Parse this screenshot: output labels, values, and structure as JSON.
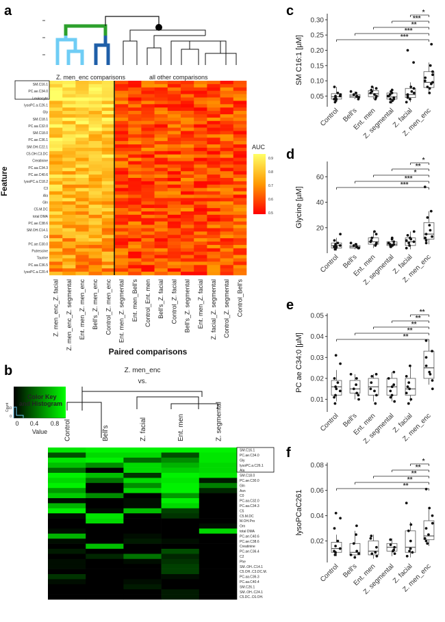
{
  "panel_letters": {
    "a": "a",
    "b": "b",
    "c": "c",
    "d": "d",
    "e": "e",
    "f": "f"
  },
  "colors": {
    "heat_low": "#ff0000",
    "heat_mid": "#ff9900",
    "heat_high": "#ffff66",
    "green": "#00ff00",
    "black": "#000000",
    "dendro_green": "#2ca02c",
    "dendro_light_blue": "#6fcdf5",
    "dendro_dark_blue": "#1f5fa8"
  },
  "chart_data": [
    {
      "id": "a",
      "type": "heatmap",
      "ylabel": "Feature",
      "xlabel": "Paired comparisons",
      "cluster_labels": [
        "Z. men_enc comparisons",
        "all other comparisons"
      ],
      "legend": {
        "title": "AUC",
        "ticks": [
          "0.9",
          "0.8",
          "0.7",
          "0.6",
          "0.5"
        ],
        "range": [
          0.5,
          0.95
        ]
      },
      "columns": [
        "Z. men_enc_Z. facial",
        "Z. men_enc_Z. segmental",
        "Ent. men_Z. men_enc",
        "Bell's_Z. men_enc",
        "Control_Z. men_enc",
        "Ent. men_Z. segmental",
        "Ent. men_Bell's",
        "Control_Ent. men",
        "Bell's_Z. facial",
        "Control_Z. facial",
        "Bell's_Z. segmental",
        "Ent. men_Z. facial",
        "Z. facial_Z. segmental",
        "Control_Z. segmental",
        "Control_Bell's"
      ],
      "boxed_rows": [
        "SM.C16.1",
        "PC.ae.C34.0",
        "Leukocyte",
        "lysoPC.a.C26.1"
      ],
      "row_labels": [
        "SM.C16.1",
        "PC.ae.C34.0",
        "Leukocyte",
        "lysoPC.a.C26.1",
        "Gly",
        "SM.C18.1",
        "PC.aa.C32.0",
        "SM.C18.0",
        "PC.ae.C36.1",
        "SM.OH.C22.1",
        "C5.OH.C3.DC",
        "Creatinine",
        "PC.aa.C34.3",
        "PC.ae.C40.6",
        "lysoPC.a.C18.2",
        "C3",
        "Ala",
        "Gln",
        "C5.M.DC",
        "total DMA",
        "PC.ae.C38.6",
        "SM.OH.C14.1",
        "C4",
        "PC.ae.C30.0",
        "Putrescine",
        "Taurine",
        "PC.aa.C36.5",
        "lysoPC.a.C20.4"
      ],
      "row_count": 58,
      "col_count": 15
    },
    {
      "id": "b",
      "type": "heatmap",
      "group_label": "Z. men_enc",
      "vs_label": "vs.",
      "columns": [
        "Control",
        "Bell's",
        "Z. facial",
        "Ent. men",
        "Z. segmental"
      ],
      "color_key": {
        "title": "Color Key",
        "subtitle": "and Histogram",
        "xlabel": "Value",
        "ylabel": "Count",
        "ticks": [
          "0",
          "0.4",
          "0.8"
        ],
        "yticks": [
          "0",
          "10"
        ]
      },
      "boxed_rows": [
        "SM.C16.1",
        "PC.ae.C34.0",
        "Gly",
        "lysoPC.a.C26.1"
      ],
      "rows": [
        {
          "name": "SM.C16.1",
          "values": [
            0.9,
            0.95,
            0.95,
            0.95,
            0.95
          ]
        },
        {
          "name": "PC.ae.C34.0",
          "values": [
            0.3,
            0.85,
            0.85,
            0.3,
            0.9
          ]
        },
        {
          "name": "Gly",
          "values": [
            0.9,
            0.95,
            0.4,
            0.55,
            0.9
          ]
        },
        {
          "name": "lysoPC.a.C26.1",
          "values": [
            0.75,
            0.55,
            0.85,
            0.7,
            0.85
          ]
        },
        {
          "name": "Ala",
          "values": [
            0.4,
            0.0,
            0.85,
            0.8,
            0.85
          ]
        },
        {
          "name": "SM.C18.0",
          "values": [
            0.95,
            0.75,
            0.2,
            0.95,
            0.9
          ]
        },
        {
          "name": "PC.ae.C30.0",
          "values": [
            0.85,
            0.45,
            0.85,
            0.9,
            0.1
          ]
        },
        {
          "name": "Gln",
          "values": [
            0.95,
            0.0,
            0.55,
            0.95,
            0.5
          ]
        },
        {
          "name": "Asn",
          "values": [
            0.6,
            0.0,
            0.85,
            0.95,
            0.15
          ]
        },
        {
          "name": "C0",
          "values": [
            0.8,
            0.55,
            0.0,
            0.6,
            0.0
          ]
        },
        {
          "name": "PC.aa.C32.0",
          "values": [
            0.05,
            0.0,
            0.05,
            0.95,
            0.0
          ]
        },
        {
          "name": "PC.aa.C34.3",
          "values": [
            0.7,
            0.0,
            0.05,
            0.85,
            0.0
          ]
        },
        {
          "name": "C5",
          "values": [
            0.95,
            0.05,
            0.75,
            0.25,
            0.0
          ]
        },
        {
          "name": "C5.M.DC",
          "values": [
            0.05,
            0.9,
            0.0,
            0.2,
            0.0
          ]
        },
        {
          "name": "M.OH.Pro",
          "values": [
            0.0,
            0.85,
            0.0,
            0.0,
            0.0
          ]
        },
        {
          "name": "Orn",
          "values": [
            0.0,
            0.0,
            0.0,
            0.0,
            0.05
          ]
        },
        {
          "name": "total DMA",
          "values": [
            0.05,
            0.0,
            0.0,
            0.0,
            0.85
          ]
        },
        {
          "name": "PC.ae.C40.6",
          "values": [
            0.7,
            0.0,
            0.05,
            0.0,
            0.0
          ]
        },
        {
          "name": "PC.ae.C38.6",
          "values": [
            0.05,
            0.0,
            0.1,
            0.05,
            0.0
          ]
        },
        {
          "name": "Creatinine",
          "values": [
            0.0,
            0.75,
            0.0,
            0.0,
            0.0
          ]
        },
        {
          "name": "PC.ae.C36.4",
          "values": [
            0.1,
            0.0,
            0.0,
            0.3,
            0.0
          ]
        },
        {
          "name": "C2",
          "values": [
            0.0,
            0.15,
            0.45,
            0.15,
            0.0
          ]
        },
        {
          "name": "Phe",
          "values": [
            0.05,
            0.0,
            0.05,
            0.2,
            0.0
          ]
        },
        {
          "name": "SM..OH..C14.1",
          "values": [
            0.05,
            0.0,
            0.0,
            0.25,
            0.0
          ]
        },
        {
          "name": "C5.OH..C3.DC.M.",
          "values": [
            0.0,
            0.0,
            0.0,
            0.25,
            0.0
          ]
        },
        {
          "name": "PC.aa.C36.3",
          "values": [
            0.2,
            0.0,
            0.0,
            0.05,
            0.0
          ]
        },
        {
          "name": "PC.aa.C40.4",
          "values": [
            0.05,
            0.0,
            0.05,
            0.0,
            0.0
          ]
        },
        {
          "name": "SM.C26.1",
          "values": [
            0.0,
            0.0,
            0.1,
            0.0,
            0.0
          ]
        },
        {
          "name": "SM..OH..C24.1",
          "values": [
            0.0,
            0.0,
            0.0,
            0.1,
            0.0
          ]
        },
        {
          "name": "C5.DC..C6.OH.",
          "values": [
            0.0,
            0.0,
            0.0,
            0.1,
            0.0
          ]
        }
      ]
    },
    {
      "id": "c",
      "type": "scatter",
      "ylabel": "SM C16:1 [µM]",
      "ylim": [
        0.015,
        0.32
      ],
      "yticks": [
        "0.05",
        "0.10",
        "0.15",
        "0.20",
        "0.25",
        "0.30"
      ],
      "ytick_values": [
        0.05,
        0.1,
        0.15,
        0.2,
        0.25,
        0.3
      ],
      "categories": [
        "Control",
        "Bell's",
        "Ent. men",
        "Z. segmental",
        "Z. facial",
        "Z. men_enc"
      ],
      "boxes": [
        [
          0.035,
          0.04,
          0.048,
          0.058,
          0.08
        ],
        [
          0.04,
          0.045,
          0.05,
          0.055,
          0.065
        ],
        [
          0.04,
          0.048,
          0.058,
          0.068,
          0.08
        ],
        [
          0.025,
          0.04,
          0.047,
          0.06,
          0.075
        ],
        [
          0.03,
          0.045,
          0.055,
          0.075,
          0.095
        ],
        [
          0.06,
          0.078,
          0.095,
          0.13,
          0.16
        ]
      ],
      "points": [
        [
          0.03,
          0.04,
          0.05,
          0.045,
          0.06,
          0.08,
          0.055,
          0.035,
          0.05,
          0.04
        ],
        [
          0.045,
          0.05,
          0.055,
          0.06,
          0.048,
          0.065,
          0.04
        ],
        [
          0.04,
          0.05,
          0.06,
          0.07,
          0.065,
          0.075,
          0.055,
          0.045,
          0.08
        ],
        [
          0.03,
          0.04,
          0.05,
          0.045,
          0.06,
          0.07,
          0.055,
          0.035,
          0.05,
          0.065,
          0.04
        ],
        [
          0.03,
          0.04,
          0.055,
          0.06,
          0.075,
          0.08,
          0.045,
          0.2,
          0.16,
          0.05,
          0.065
        ],
        [
          0.06,
          0.08,
          0.09,
          0.1,
          0.11,
          0.13,
          0.15,
          0.22,
          0.075,
          0.095,
          0.12
        ]
      ],
      "significance": [
        {
          "from": 5,
          "to": 6,
          "label": "*"
        },
        {
          "from": 4,
          "to": 6,
          "label": "***"
        },
        {
          "from": 3,
          "to": 6,
          "label": "**"
        },
        {
          "from": 2,
          "to": 6,
          "label": "***"
        },
        {
          "from": 1,
          "to": 6,
          "label": "***"
        }
      ]
    },
    {
      "id": "d",
      "type": "scatter",
      "ylabel": "Glycine [µM]",
      "ylim": [
        0,
        72
      ],
      "yticks": [
        "20",
        "40",
        "60"
      ],
      "ytick_values": [
        20,
        40,
        60
      ],
      "categories": [
        "Control",
        "Bell's",
        "Ent. men",
        "Z. segmental",
        "Z. facial",
        "Z. men_enc"
      ],
      "boxes": [
        [
          2,
          4,
          6,
          8,
          12
        ],
        [
          3,
          4,
          5,
          6,
          8
        ],
        [
          4,
          7,
          9,
          12,
          17
        ],
        [
          4,
          6,
          7,
          9,
          12
        ],
        [
          3,
          6,
          9,
          12,
          17
        ],
        [
          7,
          11,
          15,
          24,
          33
        ]
      ],
      "points": [
        [
          3,
          5,
          6,
          7,
          8,
          10,
          15,
          4,
          6,
          5
        ],
        [
          4,
          5,
          6,
          7,
          5,
          8,
          4
        ],
        [
          6,
          8,
          9,
          10,
          12,
          15,
          17,
          7
        ],
        [
          5,
          6,
          7,
          8,
          9,
          11,
          12,
          7,
          6
        ],
        [
          4,
          6,
          8,
          10,
          12,
          14,
          17,
          9,
          11
        ],
        [
          8,
          10,
          13,
          15,
          18,
          22,
          28,
          33,
          52,
          12
        ]
      ],
      "significance": [
        {
          "from": 5,
          "to": 6,
          "label": "*"
        },
        {
          "from": 4,
          "to": 6,
          "label": "**"
        },
        {
          "from": 3,
          "to": 6,
          "label": "*"
        },
        {
          "from": 2,
          "to": 6,
          "label": "***"
        },
        {
          "from": 1,
          "to": 6,
          "label": "***"
        }
      ]
    },
    {
      "id": "e",
      "type": "scatter",
      "ylabel": "PC ae C34:0 [µM]",
      "ylim": [
        0.004,
        0.051
      ],
      "yticks": [
        "0.01",
        "0.02",
        "0.03",
        "0.04",
        "0.05"
      ],
      "ytick_values": [
        0.01,
        0.02,
        0.03,
        0.04,
        0.05
      ],
      "categories": [
        "Control",
        "Bell's",
        "Ent. men",
        "Z. segmental",
        "Z. facial",
        "Z. men_enc"
      ],
      "boxes": [
        [
          0.009,
          0.012,
          0.016,
          0.019,
          0.024
        ],
        [
          0.01,
          0.013,
          0.015,
          0.019,
          0.022
        ],
        [
          0.009,
          0.012,
          0.016,
          0.02,
          0.022
        ],
        [
          0.009,
          0.012,
          0.016,
          0.02,
          0.023
        ],
        [
          0.009,
          0.012,
          0.015,
          0.02,
          0.026
        ],
        [
          0.017,
          0.02,
          0.025,
          0.033,
          0.038
        ]
      ],
      "points": [
        [
          0.008,
          0.011,
          0.014,
          0.016,
          0.018,
          0.02,
          0.027,
          0.031,
          0.012,
          0.015
        ],
        [
          0.01,
          0.013,
          0.015,
          0.017,
          0.02,
          0.022,
          0.012
        ],
        [
          0.008,
          0.012,
          0.015,
          0.018,
          0.021,
          0.022,
          0.014
        ],
        [
          0.009,
          0.011,
          0.014,
          0.017,
          0.02,
          0.023,
          0.012,
          0.016
        ],
        [
          0.008,
          0.01,
          0.013,
          0.015,
          0.018,
          0.021,
          0.026,
          0.016
        ],
        [
          0.015,
          0.019,
          0.023,
          0.026,
          0.03,
          0.033,
          0.038,
          0.022
        ]
      ],
      "significance": [
        {
          "from": 5,
          "to": 6,
          "label": "**"
        },
        {
          "from": 4,
          "to": 6,
          "label": "**"
        },
        {
          "from": 3,
          "to": 6,
          "label": "**"
        },
        {
          "from": 2,
          "to": 6,
          "label": "**"
        },
        {
          "from": 1,
          "to": 6,
          "label": "**"
        }
      ]
    },
    {
      "id": "f",
      "type": "scatter",
      "ylabel": "lysoPCaC261",
      "ylim": [
        0.003,
        0.082
      ],
      "yticks": [
        "0.02",
        "0.04",
        "0.06",
        "0.08"
      ],
      "ytick_values": [
        0.02,
        0.04,
        0.06,
        0.08
      ],
      "categories": [
        "Control",
        "Bell's",
        "Ent. men",
        "Z. segmental",
        "Z. facial",
        "Z. men_enc"
      ],
      "boxes": [
        [
          0.008,
          0.011,
          0.014,
          0.019,
          0.025
        ],
        [
          0.006,
          0.009,
          0.011,
          0.018,
          0.028
        ],
        [
          0.006,
          0.009,
          0.012,
          0.02,
          0.025
        ],
        [
          0.008,
          0.012,
          0.015,
          0.018,
          0.022
        ],
        [
          0.007,
          0.011,
          0.015,
          0.028,
          0.035
        ],
        [
          0.016,
          0.021,
          0.024,
          0.036,
          0.045
        ]
      ],
      "points": [
        [
          0.009,
          0.012,
          0.014,
          0.016,
          0.02,
          0.03,
          0.038,
          0.042,
          0.011
        ],
        [
          0.007,
          0.01,
          0.012,
          0.018,
          0.025,
          0.032,
          0.009
        ],
        [
          0.008,
          0.011,
          0.015,
          0.022,
          0.024,
          0.01
        ],
        [
          0.01,
          0.012,
          0.015,
          0.017,
          0.021,
          0.013
        ],
        [
          0.008,
          0.011,
          0.014,
          0.02,
          0.028,
          0.033,
          0.05,
          0.012
        ],
        [
          0.018,
          0.022,
          0.025,
          0.03,
          0.034,
          0.04,
          0.046,
          0.061,
          0.02
        ]
      ],
      "significance": [
        {
          "from": 5,
          "to": 6,
          "label": "*"
        },
        {
          "from": 4,
          "to": 6,
          "label": "**"
        },
        {
          "from": 3,
          "to": 6,
          "label": "**"
        },
        {
          "from": 2,
          "to": 6,
          "label": "**"
        },
        {
          "from": 1,
          "to": 6,
          "label": "**"
        }
      ]
    }
  ]
}
